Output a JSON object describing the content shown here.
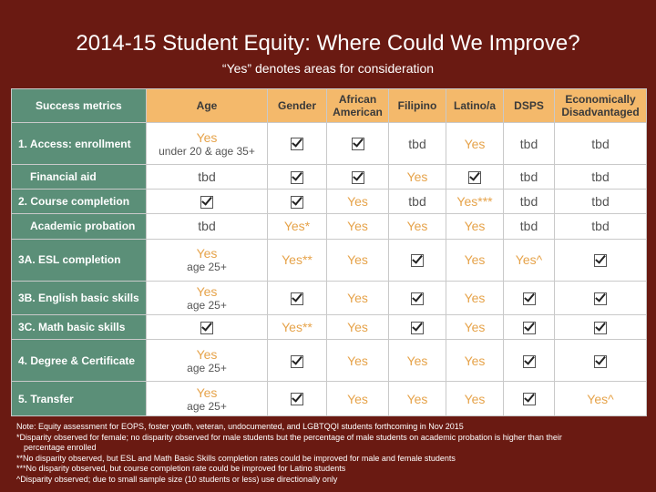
{
  "title": "2014-15 Student Equity: Where Could We Improve?",
  "subtitle": "“Yes” denotes areas for consideration",
  "table": {
    "headers": [
      "Success metrics",
      "Age",
      "Gender",
      "African American",
      "Filipino",
      "Latino/a",
      "DSPS",
      "Economically Disadvantaged"
    ],
    "rows": [
      {
        "metric": "1. Access: enrollment",
        "sub": false,
        "age_main": "Yes",
        "age_sub": "under 20 & age 35+",
        "cells": [
          "check",
          "check",
          "tbd",
          "Yes",
          "tbd",
          "tbd"
        ]
      },
      {
        "metric": "Financial aid",
        "sub": true,
        "age_main": "tbd",
        "age_sub": "",
        "cells": [
          "check",
          "check",
          "Yes",
          "check",
          "tbd",
          "tbd"
        ]
      },
      {
        "metric": "2. Course completion",
        "sub": false,
        "age_main": "check",
        "age_sub": "",
        "cells": [
          "check",
          "Yes",
          "tbd",
          "Yes***",
          "tbd",
          "tbd"
        ]
      },
      {
        "metric": "Academic probation",
        "sub": true,
        "age_main": "tbd",
        "age_sub": "",
        "cells": [
          "Yes*",
          "Yes",
          "Yes",
          "Yes",
          "tbd",
          "tbd"
        ]
      },
      {
        "metric": "3A. ESL completion",
        "sub": false,
        "age_main": "Yes",
        "age_sub": "age 25+",
        "cells": [
          "Yes**",
          "Yes",
          "check",
          "Yes",
          "Yes^",
          "check"
        ]
      },
      {
        "metric": "3B. English basic skills",
        "sub": false,
        "age_main": "Yes",
        "age_sub": "age 25+",
        "cells": [
          "check",
          "Yes",
          "check",
          "Yes",
          "check",
          "check"
        ]
      },
      {
        "metric": "3C. Math basic skills",
        "sub": false,
        "age_main": "check",
        "age_sub": "",
        "cells": [
          "Yes**",
          "Yes",
          "check",
          "Yes",
          "check",
          "check"
        ]
      },
      {
        "metric": "4. Degree & Certificate",
        "sub": false,
        "age_main": "Yes",
        "age_sub": "age 25+",
        "cells": [
          "check",
          "Yes",
          "Yes",
          "Yes",
          "check",
          "check"
        ]
      },
      {
        "metric": "5. Transfer",
        "sub": false,
        "age_main": "Yes",
        "age_sub": "age 25+",
        "cells": [
          "check",
          "Yes",
          "Yes",
          "Yes",
          "check",
          "Yes^"
        ]
      }
    ]
  },
  "notes": [
    "Note: Equity assessment for EOPS, foster youth, veteran, undocumented, and LGBTQQI students forthcoming in Nov 2015",
    "*Disparity observed for female; no disparity observed for male students but the percentage of male students on academic probation is higher than their",
    "percentage enrolled",
    "**No disparity observed, but ESL and Math Basic Skills completion rates could be improved for male and female students",
    "***No disparity observed, but course completion rate could be improved for Latino students",
    "^Disparity observed; due to small sample size (10 students or less) use directionally only"
  ],
  "colors": {
    "background": "#6a1a12",
    "header": "#f4b96b",
    "metric": "#5b8f78",
    "yes": "#e6a34a"
  },
  "icons": {
    "check": "checked-box-icon"
  }
}
